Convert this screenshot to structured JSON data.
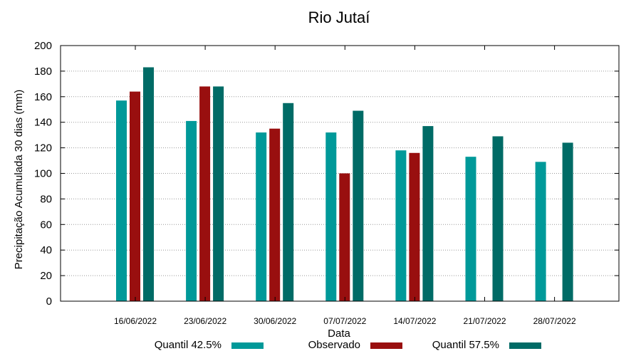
{
  "chart_data": {
    "type": "bar",
    "title": "Rio Jutaí",
    "xlabel": "Data",
    "ylabel": "Precipitação Acumulada 30 dias (mm)",
    "ylim": [
      0,
      200
    ],
    "yticks": [
      0,
      20,
      40,
      60,
      80,
      100,
      120,
      140,
      160,
      180,
      200
    ],
    "grid": true,
    "legend_position": "bottom",
    "categories": [
      "16/06/2022",
      "23/06/2022",
      "30/06/2022",
      "07/07/2022",
      "14/07/2022",
      "21/07/2022",
      "28/07/2022"
    ],
    "series": [
      {
        "name": "Quantil 42.5%",
        "color": "#009999",
        "values": [
          157,
          141,
          132,
          132,
          118,
          113,
          109
        ]
      },
      {
        "name": "Observado",
        "color": "#990f0f",
        "values": [
          164,
          168,
          135,
          100,
          116,
          null,
          null
        ]
      },
      {
        "name": "Quantil 57.5%",
        "color": "#006b66",
        "values": [
          183,
          168,
          155,
          149,
          137,
          129,
          124
        ]
      }
    ]
  }
}
